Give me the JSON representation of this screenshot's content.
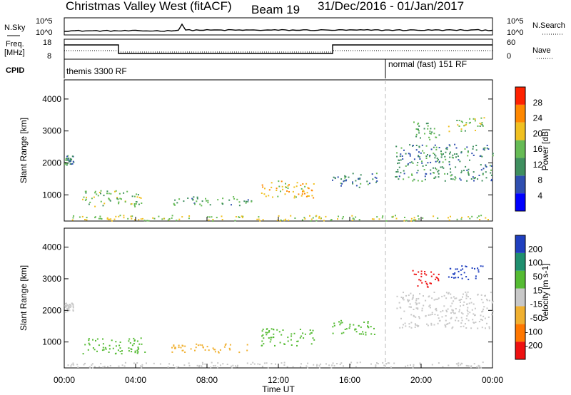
{
  "header": {
    "station": "Christmas Valley West (fitACF)",
    "beam": "Beam 19",
    "date_range": "31/Dec/2016 - 01/Jan/2017"
  },
  "panels": {
    "nsky": {
      "label": "N.Sky",
      "left_ticks": [
        "10^5",
        "10^0"
      ],
      "right_ticks": [
        "10^5",
        "10^0"
      ],
      "right_label": "N.Search"
    },
    "freq": {
      "label_line1": "Freq.",
      "label_line2": "[MHz]",
      "left_ticks": [
        "18",
        "8"
      ],
      "right_ticks": [
        "60",
        "0"
      ],
      "right_label": "Nave"
    },
    "cpid": {
      "label": "CPID",
      "modes": [
        "themis 3300 RF",
        "normal (fast) 151 RF"
      ]
    }
  },
  "x_axis": {
    "label": "Time UT",
    "ticks": [
      "00:00",
      "04:00",
      "08:00",
      "12:00",
      "16:00",
      "20:00",
      "00:00"
    ]
  },
  "colors": {
    "power_scale": [
      "#0000ff",
      "#2f4fb0",
      "#3f8f5f",
      "#66bb55",
      "#f0c020",
      "#ff8800",
      "#ff2200"
    ],
    "velocity_scale": [
      "#1f3fbf",
      "#1f8f6f",
      "#55bb33",
      "#c8c8c8",
      "#f0b030",
      "#ff7700",
      "#ee1111"
    ],
    "grey": "#c8c8c8"
  },
  "chart_data": [
    {
      "type": "heatmap",
      "name": "power",
      "ylabel": "Slant Range [km]",
      "yticks": [
        "1000",
        "2000",
        "3000",
        "4000"
      ],
      "ylim": [
        180,
        4600
      ],
      "xlim_hours": [
        0,
        24
      ],
      "colorbar": {
        "label": "Power [dB]",
        "ticks": [
          "4",
          "8",
          "12",
          "16",
          "20",
          "24",
          "28"
        ],
        "range": [
          0,
          30
        ]
      },
      "scatter_regions": [
        {
          "t0": 0.0,
          "t1": 0.5,
          "r0": 1950,
          "r1": 2250,
          "v": 10
        },
        {
          "t0": 1.0,
          "t1": 4.5,
          "r0": 650,
          "r1": 1150,
          "v": 14
        },
        {
          "t0": 6.0,
          "t1": 10.5,
          "r0": 680,
          "r1": 960,
          "v": 11
        },
        {
          "t0": 11.0,
          "t1": 14.0,
          "r0": 900,
          "r1": 1450,
          "v": 18
        },
        {
          "t0": 15.0,
          "t1": 17.5,
          "r0": 1250,
          "r1": 1700,
          "v": 9
        },
        {
          "t0": 18.5,
          "t1": 24.0,
          "r0": 1450,
          "r1": 2600,
          "v": 10
        },
        {
          "t0": 19.5,
          "t1": 21.0,
          "r0": 2750,
          "r1": 3300,
          "v": 12
        },
        {
          "t0": 21.5,
          "t1": 23.5,
          "r0": 3000,
          "r1": 3450,
          "v": 15
        },
        {
          "t0": 0.0,
          "t1": 24.0,
          "r0": 200,
          "r1": 380,
          "v": 16
        }
      ]
    },
    {
      "type": "heatmap",
      "name": "velocity",
      "ylabel": "Slant Range [km]",
      "yticks": [
        "1000",
        "2000",
        "3000",
        "4000"
      ],
      "ylim": [
        180,
        4600
      ],
      "xlim_hours": [
        0,
        24
      ],
      "colorbar": {
        "label": "Velocity [m s-1]",
        "ticks": [
          "200",
          "100",
          "50",
          "15",
          "-15",
          "-50",
          "-100",
          "-200"
        ],
        "range": [
          -250,
          250
        ]
      },
      "scatter_regions": [
        {
          "t0": 0.0,
          "t1": 0.5,
          "r0": 1950,
          "r1": 2250,
          "v": 0
        },
        {
          "t0": 1.0,
          "t1": 4.5,
          "r0": 650,
          "r1": 1150,
          "v": 40
        },
        {
          "t0": 6.0,
          "t1": 10.5,
          "r0": 680,
          "r1": 960,
          "v": -30
        },
        {
          "t0": 11.0,
          "t1": 14.0,
          "r0": 900,
          "r1": 1450,
          "v": 60
        },
        {
          "t0": 15.0,
          "t1": 17.5,
          "r0": 1250,
          "r1": 1700,
          "v": 40
        },
        {
          "t0": 18.5,
          "t1": 24.0,
          "r0": 1450,
          "r1": 2600,
          "v": 0
        },
        {
          "t0": 19.5,
          "t1": 21.0,
          "r0": 2750,
          "r1": 3300,
          "v": -180
        },
        {
          "t0": 21.5,
          "t1": 23.5,
          "r0": 3000,
          "r1": 3450,
          "v": 180
        },
        {
          "t0": 0.0,
          "t1": 24.0,
          "r0": 200,
          "r1": 380,
          "v": 10
        }
      ]
    }
  ]
}
